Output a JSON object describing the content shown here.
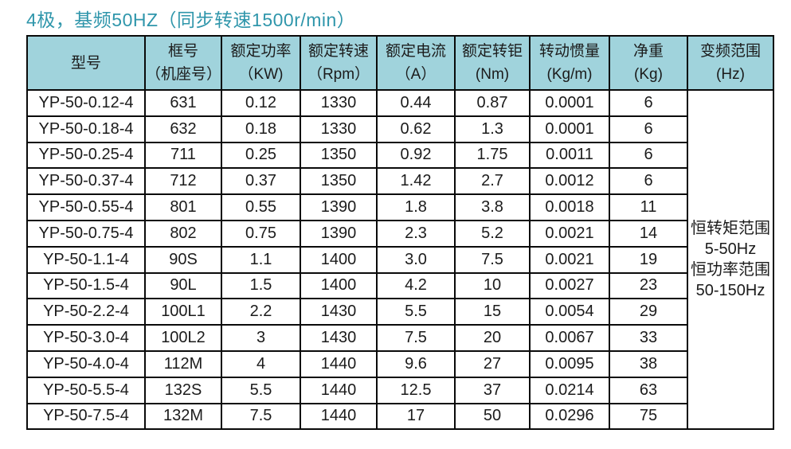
{
  "title": "4极，基频50HZ（同步转速1500r/min）",
  "colors": {
    "title_text": "#2f96ab",
    "header_bg": "#a0d3dc",
    "border": "#0a0a0a",
    "body_text": "#1b1b1b"
  },
  "table": {
    "columns": [
      {
        "line1": "型号",
        "line2": ""
      },
      {
        "line1": "框号",
        "line2": "（机座号）"
      },
      {
        "line1": "额定功率",
        "line2": "（KW)"
      },
      {
        "line1": "额定转速",
        "line2": "（Rpm）"
      },
      {
        "line1": "额定电流",
        "line2": "（A）"
      },
      {
        "line1": "额定转钜",
        "line2": "(Nm)"
      },
      {
        "line1": "转动惯量",
        "line2": "(Kg/m)"
      },
      {
        "line1": "净重",
        "line2": "(Kg)"
      },
      {
        "line1": "变频范围",
        "line2": "(Hz)"
      }
    ],
    "rows": [
      [
        "YP-50-0.12-4",
        "631",
        "0.12",
        "1330",
        "0.44",
        "0.87",
        "0.0001",
        "6"
      ],
      [
        "YP-50-0.18-4",
        "632",
        "0.18",
        "1330",
        "0.62",
        "1.3",
        "0.0001",
        "6"
      ],
      [
        "YP-50-0.25-4",
        "711",
        "0.25",
        "1350",
        "0.92",
        "1.75",
        "0.0011",
        "6"
      ],
      [
        "YP-50-0.37-4",
        "712",
        "0.37",
        "1350",
        "1.42",
        "2.7",
        "0.0012",
        "6"
      ],
      [
        "YP-50-0.55-4",
        "801",
        "0.55",
        "1390",
        "1.8",
        "3.8",
        "0.0018",
        "11"
      ],
      [
        "YP-50-0.75-4",
        "802",
        "0.75",
        "1390",
        "2.3",
        "5.2",
        "0.0021",
        "14"
      ],
      [
        "YP-50-1.1-4",
        "90S",
        "1.1",
        "1400",
        "3.0",
        "7.5",
        "0.0021",
        "19"
      ],
      [
        "YP-50-1.5-4",
        "90L",
        "1.5",
        "1400",
        "4.2",
        "10",
        "0.0027",
        "23"
      ],
      [
        "YP-50-2.2-4",
        "100L1",
        "2.2",
        "1430",
        "5.5",
        "15",
        "0.0054",
        "29"
      ],
      [
        "YP-50-3.0-4",
        "100L2",
        "3",
        "1430",
        "7.5",
        "20",
        "0.0067",
        "33"
      ],
      [
        "YP-50-4.0-4",
        "112M",
        "4",
        "1440",
        "9.6",
        "27",
        "0.0095",
        "38"
      ],
      [
        "YP-50-5.5-4",
        "132S",
        "5.5",
        "1440",
        "12.5",
        "37",
        "0.0214",
        "63"
      ],
      [
        "YP-50-7.5-4",
        "132M",
        "7.5",
        "1440",
        "17",
        "50",
        "0.0296",
        "75"
      ]
    ],
    "freq_range": {
      "lines": [
        "恒转矩范围",
        "5-50Hz",
        "恒功率范围",
        "50-150Hz"
      ]
    }
  },
  "chart_data": {
    "type": "table",
    "title": "4极，基频50HZ（同步转速1500r/min）",
    "columns": [
      "型号",
      "框号（机座号）",
      "额定功率（KW)",
      "额定转速（Rpm）",
      "额定电流（A）",
      "额定转钜(Nm)",
      "转动惯量(Kg/m)",
      "净重(Kg)",
      "变频范围(Hz)"
    ],
    "rows": [
      [
        "YP-50-0.12-4",
        "631",
        0.12,
        1330,
        0.44,
        0.87,
        0.0001,
        6
      ],
      [
        "YP-50-0.18-4",
        "632",
        0.18,
        1330,
        0.62,
        1.3,
        0.0001,
        6
      ],
      [
        "YP-50-0.25-4",
        "711",
        0.25,
        1350,
        0.92,
        1.75,
        0.0011,
        6
      ],
      [
        "YP-50-0.37-4",
        "712",
        0.37,
        1350,
        1.42,
        2.7,
        0.0012,
        6
      ],
      [
        "YP-50-0.55-4",
        "801",
        0.55,
        1390,
        1.8,
        3.8,
        0.0018,
        11
      ],
      [
        "YP-50-0.75-4",
        "802",
        0.75,
        1390,
        2.3,
        5.2,
        0.0021,
        14
      ],
      [
        "YP-50-1.1-4",
        "90S",
        1.1,
        1400,
        3.0,
        7.5,
        0.0021,
        19
      ],
      [
        "YP-50-1.5-4",
        "90L",
        1.5,
        1400,
        4.2,
        10,
        0.0027,
        23
      ],
      [
        "YP-50-2.2-4",
        "100L1",
        2.2,
        1430,
        5.5,
        15,
        0.0054,
        29
      ],
      [
        "YP-50-3.0-4",
        "100L2",
        3,
        1430,
        7.5,
        20,
        0.0067,
        33
      ],
      [
        "YP-50-4.0-4",
        "112M",
        4,
        1440,
        9.6,
        27,
        0.0095,
        38
      ],
      [
        "YP-50-5.5-4",
        "132S",
        5.5,
        1440,
        12.5,
        37,
        0.0214,
        63
      ],
      [
        "YP-50-7.5-4",
        "132M",
        7.5,
        1440,
        17,
        50,
        0.0296,
        75
      ]
    ],
    "merged_last_column_value": "恒转矩范围 5-50Hz 恒功率范围 50-150Hz"
  }
}
